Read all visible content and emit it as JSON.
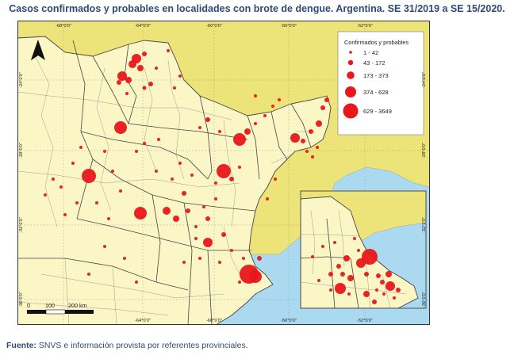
{
  "title": "Casos confirmados y probables en localidades con brote de dengue. Argentina. SE 31/2019 a SE 15/2020.",
  "footer": {
    "label": "Fuente:",
    "text": " SNVS e información provista por referentes provinciales."
  },
  "colors": {
    "water": "#aad9f0",
    "land_arg": "#fbf6c6",
    "land_neighbor": "#ece478",
    "boundary": "#444444",
    "point": "#e8171b"
  },
  "map": {
    "north_arrow_icon": "north-arrow-icon",
    "lon_labels_top": [
      "-68°0'0\"",
      "-64°0'0\"",
      "-60°0'0\"",
      "-56°0'0\"",
      "-52°0'0\""
    ],
    "lon_labels_bottom": [
      "-64°0'0\"",
      "-60°0'0\"",
      "-56°0'0\"",
      "-52°0'0\""
    ],
    "lat_labels_left": [
      "-24°0'0\"",
      "-28°0'0\"",
      "-32°0'0\"",
      "-36°0'0\""
    ],
    "lat_labels_right": [
      "-24°0'0\"",
      "-28°0'0\"",
      "-32°0'0\"",
      "-36°0'0\""
    ],
    "scale_bar": {
      "ticks": [
        "0",
        "100",
        "200 km"
      ]
    },
    "legend": {
      "title": "Confirmados y probables",
      "classes": [
        "1 - 42",
        "43 - 172",
        "173 - 373",
        "374 - 628",
        "629 - 3649"
      ]
    }
  }
}
